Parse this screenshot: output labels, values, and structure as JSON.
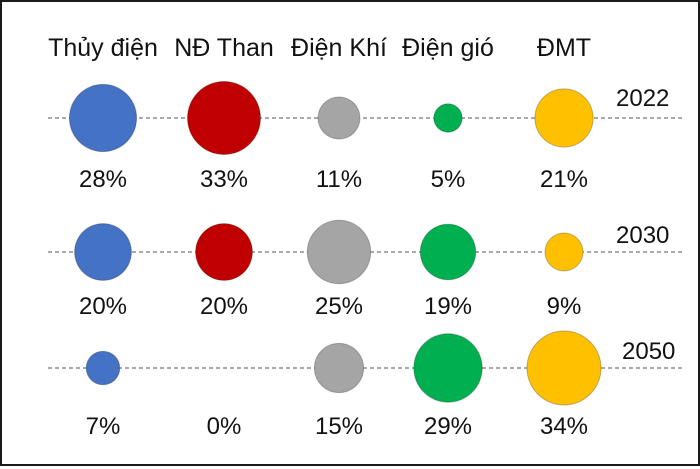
{
  "chart_data": {
    "type": "bubble",
    "categories": [
      "Thủy điện",
      "NĐ Than",
      "Điện Khí",
      "Điện gió",
      "ĐMT"
    ],
    "colors": [
      "#4472C4",
      "#C00000",
      "#A5A5A5",
      "#00B050",
      "#FFC000"
    ],
    "series": [
      {
        "year": "2022",
        "values": [
          28,
          33,
          11,
          5,
          21
        ],
        "labels": [
          "28%",
          "33%",
          "11%",
          "5%",
          "21%"
        ]
      },
      {
        "year": "2030",
        "values": [
          20,
          20,
          25,
          19,
          9
        ],
        "labels": [
          "20%",
          "20%",
          "25%",
          "19%",
          "9%"
        ]
      },
      {
        "year": "2050",
        "values": [
          7,
          0,
          15,
          29,
          34
        ],
        "labels": [
          "7%",
          "0%",
          "15%",
          "29%",
          "34%"
        ]
      }
    ],
    "unit": "%",
    "guide_lines": "dashed"
  }
}
